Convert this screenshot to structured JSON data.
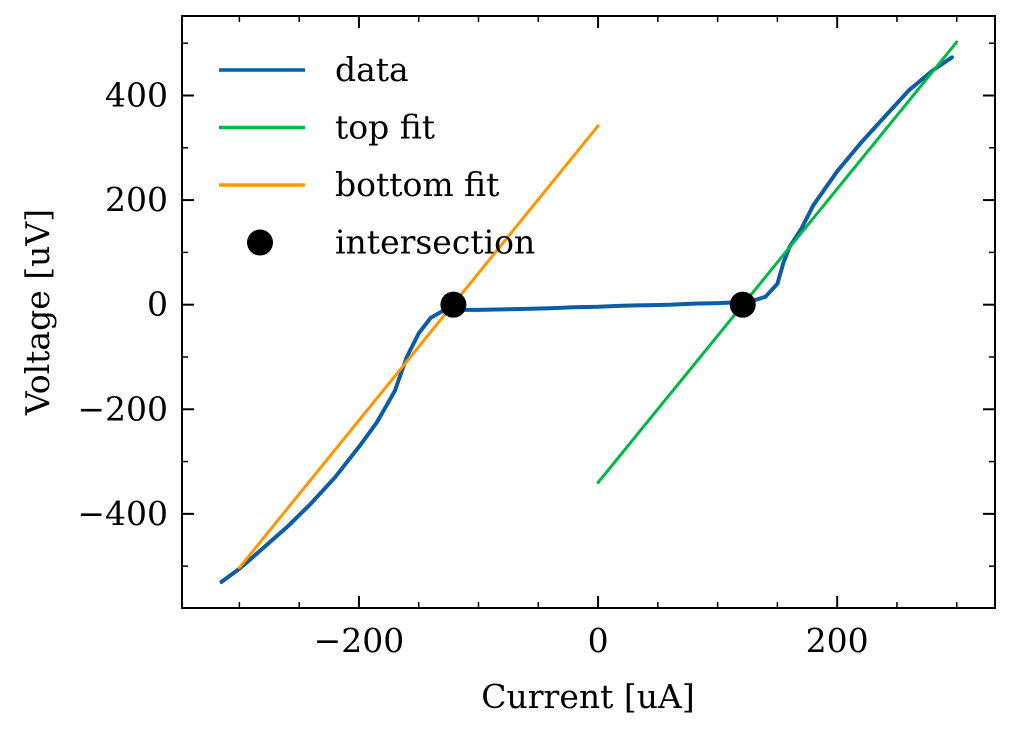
{
  "chart_data": {
    "type": "line",
    "title": "",
    "xlabel": "Current [uA]",
    "ylabel": "Voltage [uV]",
    "xlim": [
      -348,
      332
    ],
    "ylim": [
      -580,
      552
    ],
    "xticks": [
      -200,
      0,
      200
    ],
    "xtick_labels": [
      "−200",
      "0",
      "200"
    ],
    "yticks": [
      -400,
      -200,
      0,
      200,
      400
    ],
    "ytick_labels": [
      "−400",
      "−200",
      "0",
      "200",
      "400"
    ],
    "x_minor_step": 50,
    "y_minor_step": 100,
    "grid": false,
    "legend": "top-left",
    "series": [
      {
        "name": "data",
        "kind": "line",
        "color": "#0c5da5",
        "x": [
          -315,
          -300,
          -280,
          -260,
          -240,
          -220,
          -200,
          -185,
          -170,
          -160,
          -150,
          -140,
          -130,
          -120,
          -100,
          -80,
          -60,
          -40,
          -20,
          0,
          20,
          40,
          60,
          80,
          100,
          120,
          130,
          140,
          150,
          155,
          160,
          170,
          180,
          200,
          220,
          240,
          260,
          280,
          296
        ],
        "y": [
          -530,
          -505,
          -465,
          -425,
          -380,
          -330,
          -272,
          -225,
          -165,
          -100,
          -55,
          -25,
          -12,
          -10,
          -10,
          -9,
          -8,
          -7,
          -5,
          -4,
          -2,
          -1,
          0,
          2,
          3,
          5,
          8,
          15,
          40,
          80,
          110,
          145,
          190,
          255,
          310,
          360,
          410,
          448,
          473
        ]
      },
      {
        "name": "top fit",
        "kind": "line",
        "color": "#00b945",
        "x": [
          0,
          300
        ],
        "y": [
          -340,
          502
        ]
      },
      {
        "name": "bottom fit",
        "kind": "line",
        "color": "#ff9500",
        "x": [
          -300,
          0
        ],
        "y": [
          -503,
          342
        ]
      },
      {
        "name": "intersection",
        "kind": "scatter",
        "color": "#000000",
        "x": [
          -121,
          121
        ],
        "y": [
          0,
          0
        ]
      }
    ]
  }
}
